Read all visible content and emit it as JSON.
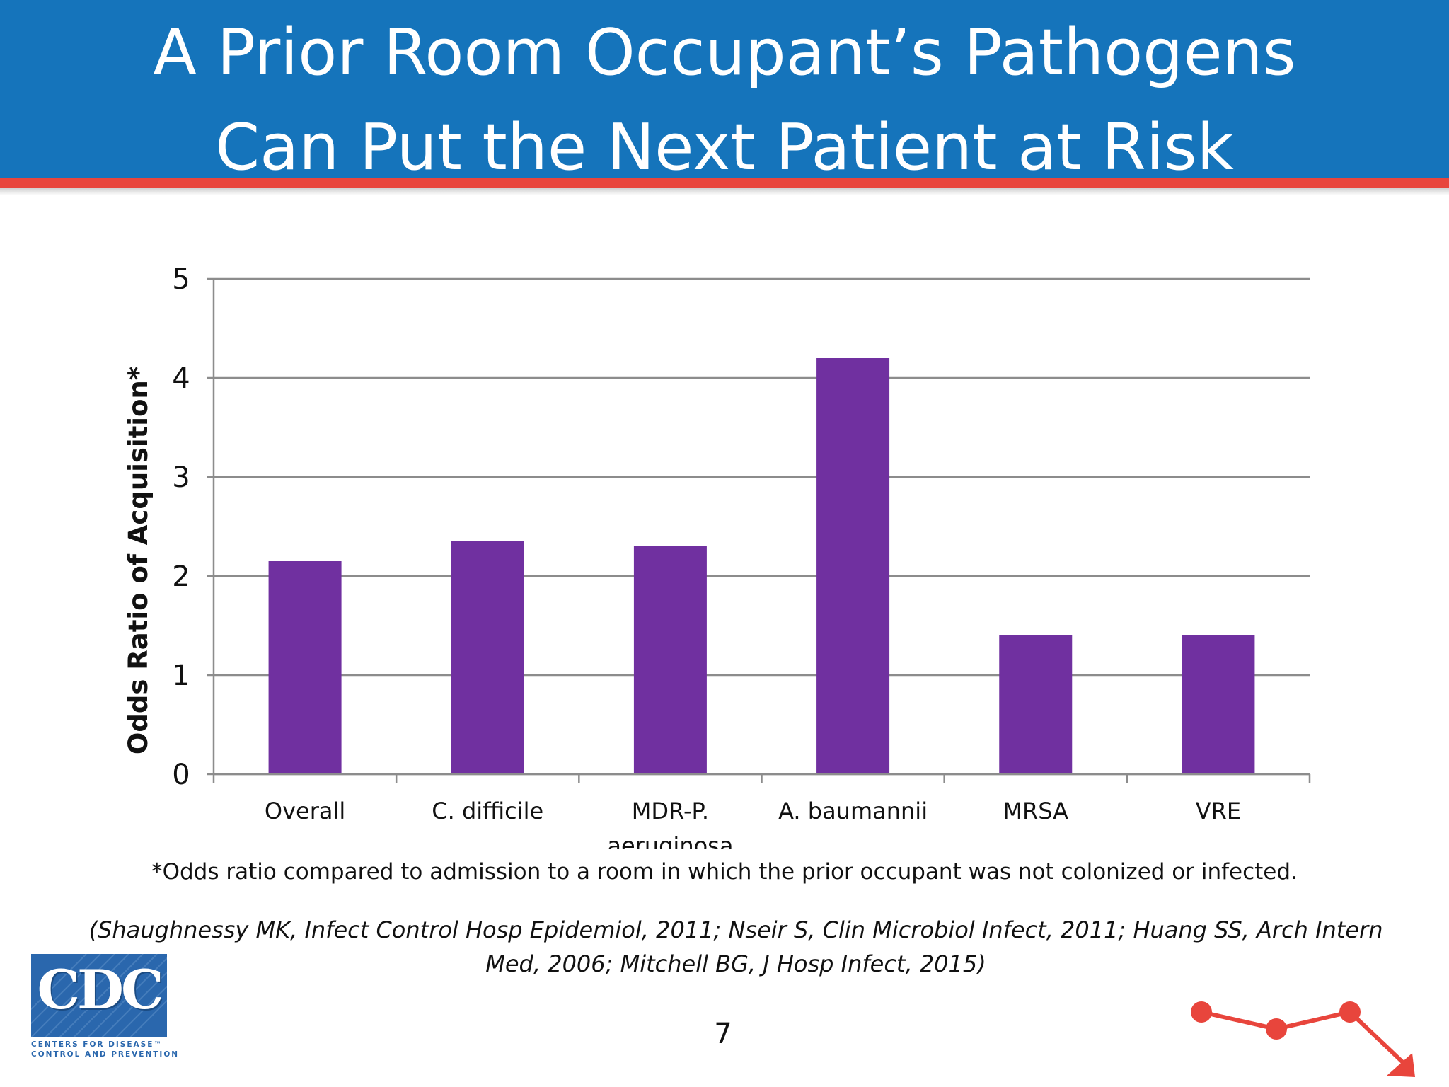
{
  "slide": {
    "title_line1": "A Prior Room Occupant’s Pathogens",
    "title_line2": "Can Put the Next Patient at Risk",
    "footnote": "*Odds ratio compared to admission to a room in which the prior occupant was not colonized or infected.",
    "citation_line1": "(Shaughnessy MK, Infect Control Hosp Epidemiol, 2011; Nseir S, Clin Microbiol Infect, 2011; Huang SS, Arch Intern",
    "citation_line2": "Med, 2006; Mitchell BG, J Hosp Infect, 2015)",
    "page_number": "7"
  },
  "logo": {
    "letters": "CDC",
    "tagline_line1": "CENTERS FOR DISEASE™",
    "tagline_line2": "CONTROL AND PREVENTION"
  },
  "colors": {
    "banner": "#1574bb",
    "accent": "#e8453c",
    "bar": "#7030a0",
    "grid": "#8c8c8c",
    "logo": "#2a67ad"
  },
  "decoration": {
    "icon": "trend-line-down-icon"
  },
  "chart_data": {
    "type": "bar",
    "title": "",
    "xlabel": "",
    "ylabel": "Odds Ratio of Acquisition*",
    "categories": [
      [
        "Overall"
      ],
      [
        "C. difficile"
      ],
      [
        "MDR-P.",
        "aeruginosa"
      ],
      [
        "A. baumannii"
      ],
      [
        "MRSA"
      ],
      [
        "VRE"
      ]
    ],
    "values": [
      2.15,
      2.35,
      2.3,
      4.2,
      1.4,
      1.4
    ],
    "ylim": [
      0,
      5
    ],
    "yticks": [
      "0",
      "1",
      "2",
      "3",
      "4",
      "5"
    ],
    "grid": true,
    "legend": "none"
  }
}
